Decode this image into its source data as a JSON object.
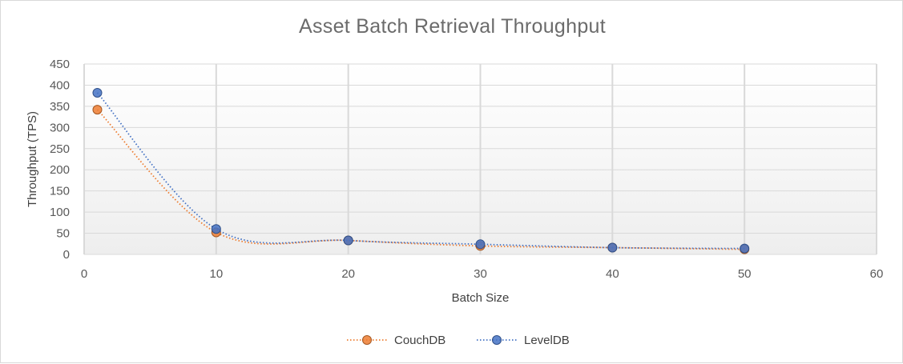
{
  "chart_data": {
    "type": "scatter",
    "title": "Asset Batch Retrieval Throughput",
    "xlabel": "Batch Size",
    "ylabel": "Throughput (TPS)",
    "xlim": [
      0,
      60
    ],
    "ylim": [
      0,
      450
    ],
    "x_ticks": [
      "0",
      "10",
      "20",
      "30",
      "40",
      "50",
      "60"
    ],
    "y_ticks": [
      "0",
      "50",
      "100",
      "150",
      "200",
      "250",
      "300",
      "350",
      "400",
      "450"
    ],
    "grid": true,
    "legend_position": "bottom",
    "series": [
      {
        "name": "CouchDB",
        "color": "#ed7d31",
        "points": [
          [
            1,
            342
          ],
          [
            10,
            52
          ],
          [
            20,
            33
          ],
          [
            30,
            20
          ],
          [
            40,
            16
          ],
          [
            50,
            12
          ]
        ]
      },
      {
        "name": "LevelDB",
        "color": "#4472c4",
        "points": [
          [
            1,
            382
          ],
          [
            10,
            60
          ],
          [
            20,
            33
          ],
          [
            30,
            24
          ],
          [
            40,
            16
          ],
          [
            50,
            14
          ]
        ]
      }
    ]
  }
}
